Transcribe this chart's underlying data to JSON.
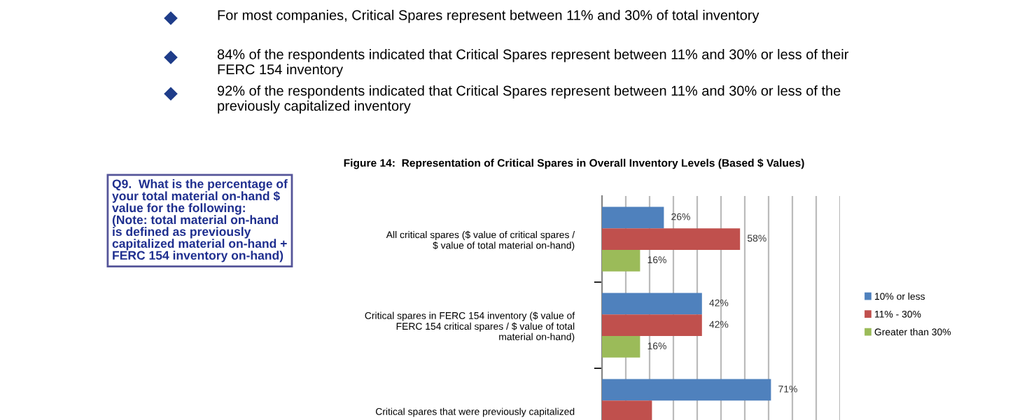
{
  "chart_data": {
    "type": "bar",
    "orientation": "horizontal",
    "title": "Figure 14:  Representation of Critical Spares in Overall Inventory Levels (Based $ Values)",
    "categories": [
      "All critical spares ($ value of critical spares / $ value of total material on-hand)",
      "Critical spares in FERC 154 inventory ($ value of FERC 154 critical spares / $ value of total material on-hand)",
      "Critical spares that were previously capitalized"
    ],
    "series": [
      {
        "name": "10% or less",
        "color": "#4f81bd",
        "values": [
          26,
          42,
          71
        ],
        "value_labels": [
          "26%",
          "42%",
          "71%"
        ]
      },
      {
        "name": "11% - 30%",
        "color": "#c0504d",
        "values": [
          58,
          42,
          21
        ],
        "value_labels": [
          "58%",
          "42%",
          null
        ]
      },
      {
        "name": "Greater than 30%",
        "color": "#9bbb59",
        "values": [
          16,
          16,
          null
        ],
        "value_labels": [
          "16%",
          "16%",
          null
        ]
      }
    ],
    "xlim": [
      0,
      100
    ],
    "xticks": [
      0,
      10,
      20,
      30,
      40,
      50,
      60,
      70,
      80,
      90,
      100
    ],
    "tick_labels": "y",
    "grid": "x",
    "legend": "right",
    "annotations": [
      "For most companies, Critical Spares represent between 11% and 30% of total inventory",
      "84% of the respondents indicated that Critical Spares represent between 11% and 30% or less of their FERC 154 inventory",
      "92% of the respondents indicated that Critical Spares represent between 11% and 30% or less of the previously capitalized inventory",
      "Q9.  What is the percentage of your total material on-hand $ value for the following:  (Note: total material on-hand is defined as previously capitalized material on-hand + FERC 154 inventory on-hand)"
    ]
  }
}
